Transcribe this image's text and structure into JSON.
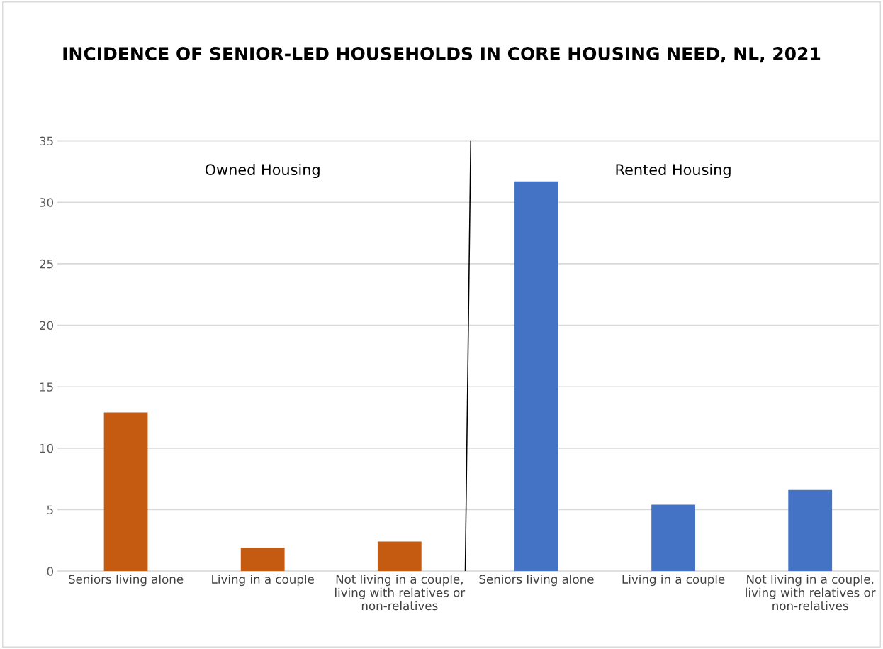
{
  "chart_data": {
    "type": "bar",
    "title": "INCIDENCE OF SENIOR-LED HOUSEHOLDS IN CORE HOUSING NEED, NL, 2021",
    "categories": [
      "Seniors living alone",
      "Living in a couple",
      "Not living in a couple, living with relatives or non-relatives",
      "Seniors living alone",
      "Living in a couple",
      "Not living in a couple, living with relatives or non-relatives"
    ],
    "values": [
      12.9,
      1.9,
      2.4,
      31.7,
      5.4,
      6.6
    ],
    "colors": [
      "#c55a11",
      "#c55a11",
      "#c55a11",
      "#4472c4",
      "#4472c4",
      "#4472c4"
    ],
    "ylim": [
      0,
      35
    ],
    "yticks": [
      0,
      5,
      10,
      15,
      20,
      25,
      30,
      35
    ],
    "grid": "y",
    "annotations": [
      "Owned Housing",
      "Rented Housing"
    ]
  }
}
